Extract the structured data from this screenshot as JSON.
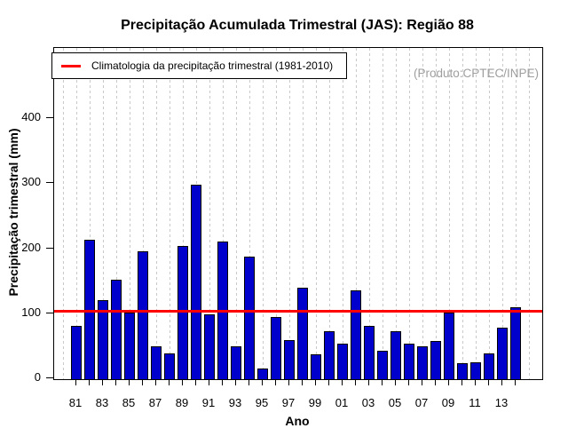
{
  "title": "Precipitação Acumulada Trimestral (JAS): Região 88",
  "watermark": "(Produto:CPTEC/INPE)",
  "legend": {
    "label": "Climatologia da precipitação trimestral (1981-2010)",
    "line_color": "#FF0000"
  },
  "chart_data": {
    "type": "bar",
    "title": "Precipitação Acumulada Trimestral (JAS): Região 88",
    "xlabel": "Ano",
    "ylabel": "Precipitação trimestral (mm)",
    "ylim": [
      0,
      508
    ],
    "yticks": [
      0,
      100,
      200,
      300,
      400
    ],
    "grid": "vertical dashed gridline per year",
    "legend_position": "top-left inside plot",
    "bar_color": "#0000CD",
    "bar_border_color": "#000000",
    "climatology_value": 104,
    "climatology_color": "#FF0000",
    "years": [
      1981,
      1982,
      1983,
      1984,
      1985,
      1986,
      1987,
      1988,
      1989,
      1990,
      1991,
      1992,
      1993,
      1994,
      1995,
      1996,
      1997,
      1998,
      1999,
      2000,
      2001,
      2002,
      2003,
      2004,
      2005,
      2006,
      2007,
      2008,
      2009,
      2010,
      2011,
      2012,
      2013,
      2014
    ],
    "categories": [
      "81",
      "82",
      "83",
      "84",
      "85",
      "86",
      "87",
      "88",
      "89",
      "90",
      "91",
      "92",
      "93",
      "94",
      "95",
      "96",
      "97",
      "98",
      "99",
      "00",
      "01",
      "02",
      "03",
      "04",
      "05",
      "06",
      "07",
      "08",
      "09",
      "10",
      "11",
      "12",
      "13",
      "14"
    ],
    "values": [
      82,
      215,
      121,
      153,
      103,
      197,
      51,
      40,
      205,
      299,
      100,
      211,
      51,
      188,
      17,
      95,
      60,
      140,
      38,
      74,
      54,
      136,
      82,
      44,
      74,
      55,
      50,
      59,
      103,
      25,
      26,
      40,
      79,
      111
    ],
    "x_labels_shown": [
      "81",
      "83",
      "85",
      "87",
      "89",
      "91",
      "93",
      "95",
      "97",
      "99",
      "01",
      "03",
      "05",
      "07",
      "09",
      "11",
      "13"
    ]
  }
}
